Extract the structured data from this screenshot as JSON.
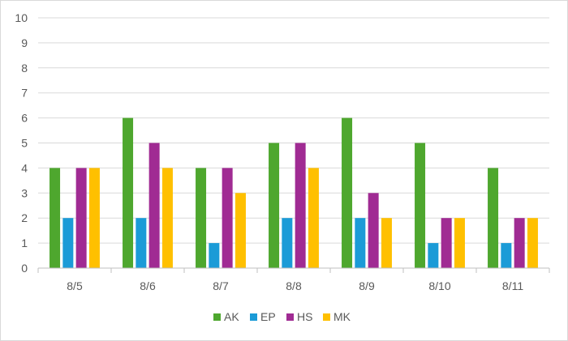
{
  "chart_data": {
    "type": "bar",
    "categories": [
      "8/5",
      "8/6",
      "8/7",
      "8/8",
      "8/9",
      "8/10",
      "8/11"
    ],
    "series": [
      {
        "name": "AK",
        "color": "#4ea72e",
        "values": [
          4,
          6,
          4,
          5,
          6,
          5,
          4
        ]
      },
      {
        "name": "EP",
        "color": "#1b9bd7",
        "values": [
          2,
          2,
          1,
          2,
          2,
          1,
          1
        ]
      },
      {
        "name": "HS",
        "color": "#a02b93",
        "values": [
          4,
          5,
          4,
          5,
          3,
          2,
          2
        ]
      },
      {
        "name": "MK",
        "color": "#ffc000",
        "values": [
          4,
          4,
          3,
          4,
          2,
          2,
          2
        ]
      }
    ],
    "y_ticks": [
      "0",
      "1",
      "2",
      "3",
      "4",
      "5",
      "6",
      "7",
      "8",
      "9",
      "10"
    ],
    "ylim": [
      0,
      10
    ],
    "grid": true,
    "legend_position": "bottom",
    "colors": {
      "gridline": "#d9d9d9",
      "axis_line": "#bfbfbf",
      "text": "#595959"
    }
  }
}
